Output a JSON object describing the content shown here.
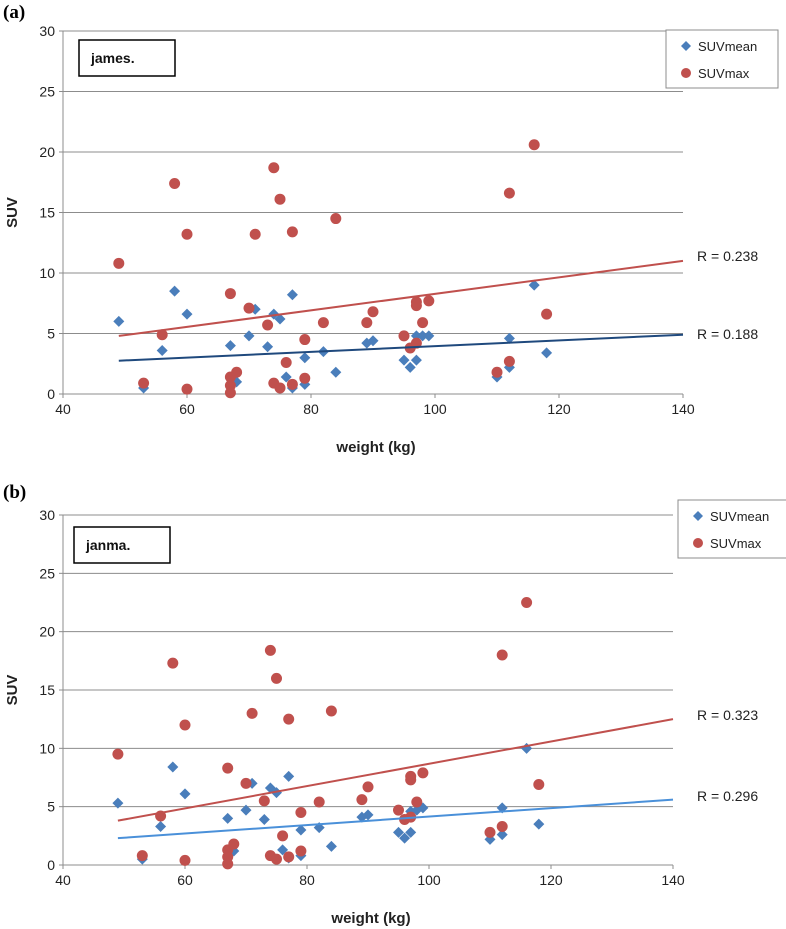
{
  "chart_data": [
    {
      "type": "scatter",
      "panel_label": "(a)",
      "tag": "james.",
      "xlabel": "weight (kg)",
      "ylabel": "SUV",
      "xlim": [
        40,
        140
      ],
      "ylim": [
        0,
        30
      ],
      "xticks": [
        40,
        60,
        80,
        100,
        120,
        140
      ],
      "yticks": [
        0,
        5,
        10,
        15,
        20,
        25,
        30
      ],
      "grid": "horizontal",
      "legend": "top-right",
      "series": [
        {
          "name": "SUVmean",
          "marker": "diamond",
          "color": "#4a7ebb",
          "points": [
            [
              49,
              6.0
            ],
            [
              53,
              0.5
            ],
            [
              56,
              3.6
            ],
            [
              58,
              8.5
            ],
            [
              60,
              6.6
            ],
            [
              67,
              4.0
            ],
            [
              67,
              1.3
            ],
            [
              68,
              1.0
            ],
            [
              70,
              4.8
            ],
            [
              71,
              7.0
            ],
            [
              73,
              3.9
            ],
            [
              74,
              6.6
            ],
            [
              75,
              6.2
            ],
            [
              76,
              1.4
            ],
            [
              77,
              8.2
            ],
            [
              77,
              0.5
            ],
            [
              79,
              3.0
            ],
            [
              79,
              0.8
            ],
            [
              82,
              3.5
            ],
            [
              84,
              1.8
            ],
            [
              89,
              4.2
            ],
            [
              90,
              4.4
            ],
            [
              95,
              2.8
            ],
            [
              96,
              2.2
            ],
            [
              97,
              2.8
            ],
            [
              97,
              4.8
            ],
            [
              98,
              4.8
            ],
            [
              99,
              4.8
            ],
            [
              110,
              1.4
            ],
            [
              112,
              2.2
            ],
            [
              112,
              4.6
            ],
            [
              116,
              9.0
            ],
            [
              118,
              3.4
            ]
          ]
        },
        {
          "name": "SUVmax",
          "marker": "circle",
          "color": "#c0504d",
          "points": [
            [
              49,
              10.8
            ],
            [
              53,
              0.9
            ],
            [
              56,
              4.9
            ],
            [
              58,
              17.4
            ],
            [
              60,
              13.2
            ],
            [
              60,
              0.4
            ],
            [
              67,
              8.3
            ],
            [
              67,
              1.4
            ],
            [
              67,
              0.7
            ],
            [
              67,
              0.1
            ],
            [
              68,
              1.8
            ],
            [
              70,
              7.1
            ],
            [
              71,
              13.2
            ],
            [
              73,
              5.7
            ],
            [
              74,
              18.7
            ],
            [
              74,
              0.9
            ],
            [
              75,
              16.1
            ],
            [
              75,
              0.5
            ],
            [
              76,
              2.6
            ],
            [
              77,
              13.4
            ],
            [
              77,
              0.8
            ],
            [
              79,
              4.5
            ],
            [
              79,
              1.3
            ],
            [
              82,
              5.9
            ],
            [
              84,
              14.5
            ],
            [
              89,
              5.9
            ],
            [
              90,
              6.8
            ],
            [
              95,
              4.8
            ],
            [
              96,
              3.8
            ],
            [
              97,
              4.2
            ],
            [
              97,
              7.3
            ],
            [
              97,
              7.6
            ],
            [
              98,
              5.9
            ],
            [
              99,
              7.7
            ],
            [
              110,
              1.8
            ],
            [
              112,
              2.7
            ],
            [
              112,
              16.6
            ],
            [
              116,
              20.6
            ],
            [
              118,
              6.6
            ]
          ]
        }
      ],
      "trendlines": [
        {
          "series": "SUVmax",
          "color": "#c0504d",
          "x": [
            49,
            140
          ],
          "y": [
            4.8,
            11.0
          ],
          "label": "R = 0.238"
        },
        {
          "series": "SUVmean",
          "color": "#1f497d",
          "x": [
            49,
            140
          ],
          "y": [
            2.75,
            4.9
          ],
          "label": "R = 0.188"
        }
      ]
    },
    {
      "type": "scatter",
      "panel_label": "(b)",
      "tag": "janma.",
      "xlabel": "weight (kg)",
      "ylabel": "SUV",
      "xlim": [
        40,
        140
      ],
      "ylim": [
        0,
        30
      ],
      "xticks": [
        40,
        60,
        80,
        100,
        120,
        140
      ],
      "yticks": [
        0,
        5,
        10,
        15,
        20,
        25,
        30
      ],
      "grid": "horizontal",
      "legend": "top-right",
      "series": [
        {
          "name": "SUVmean",
          "marker": "diamond",
          "color": "#4a7ebb",
          "points": [
            [
              49,
              5.3
            ],
            [
              53,
              0.5
            ],
            [
              56,
              3.3
            ],
            [
              58,
              8.4
            ],
            [
              60,
              6.1
            ],
            [
              67,
              4.0
            ],
            [
              67,
              1.2
            ],
            [
              68,
              1.2
            ],
            [
              70,
              4.7
            ],
            [
              71,
              7.0
            ],
            [
              73,
              3.9
            ],
            [
              74,
              6.6
            ],
            [
              75,
              6.2
            ],
            [
              76,
              1.3
            ],
            [
              77,
              7.6
            ],
            [
              77,
              0.6
            ],
            [
              79,
              3.0
            ],
            [
              79,
              0.8
            ],
            [
              82,
              3.2
            ],
            [
              84,
              1.6
            ],
            [
              89,
              4.1
            ],
            [
              90,
              4.3
            ],
            [
              95,
              2.8
            ],
            [
              96,
              2.3
            ],
            [
              97,
              2.8
            ],
            [
              97,
              4.6
            ],
            [
              98,
              4.7
            ],
            [
              99,
              4.9
            ],
            [
              110,
              2.2
            ],
            [
              112,
              2.6
            ],
            [
              112,
              4.9
            ],
            [
              116,
              10.0
            ],
            [
              118,
              3.5
            ]
          ]
        },
        {
          "name": "SUVmax",
          "marker": "circle",
          "color": "#c0504d",
          "points": [
            [
              49,
              9.5
            ],
            [
              53,
              0.8
            ],
            [
              56,
              4.2
            ],
            [
              58,
              17.3
            ],
            [
              60,
              12.0
            ],
            [
              60,
              0.4
            ],
            [
              67,
              8.3
            ],
            [
              67,
              1.3
            ],
            [
              67,
              0.7
            ],
            [
              67,
              0.1
            ],
            [
              68,
              1.8
            ],
            [
              70,
              7.0
            ],
            [
              71,
              13.0
            ],
            [
              73,
              5.5
            ],
            [
              74,
              18.4
            ],
            [
              74,
              0.8
            ],
            [
              75,
              16.0
            ],
            [
              75,
              0.5
            ],
            [
              76,
              2.5
            ],
            [
              77,
              12.5
            ],
            [
              77,
              0.7
            ],
            [
              79,
              4.5
            ],
            [
              79,
              1.2
            ],
            [
              82,
              5.4
            ],
            [
              84,
              13.2
            ],
            [
              89,
              5.6
            ],
            [
              90,
              6.7
            ],
            [
              95,
              4.7
            ],
            [
              96,
              3.9
            ],
            [
              97,
              4.1
            ],
            [
              97,
              7.3
            ],
            [
              97,
              7.6
            ],
            [
              98,
              5.4
            ],
            [
              99,
              7.9
            ],
            [
              110,
              2.8
            ],
            [
              112,
              3.3
            ],
            [
              112,
              18.0
            ],
            [
              116,
              22.5
            ],
            [
              118,
              6.9
            ]
          ]
        }
      ],
      "trendlines": [
        {
          "series": "SUVmax",
          "color": "#c0504d",
          "x": [
            49,
            140
          ],
          "y": [
            3.8,
            12.5
          ],
          "label": "R = 0.323"
        },
        {
          "series": "SUVmean",
          "color": "#4a90d9",
          "x": [
            49,
            140
          ],
          "y": [
            2.3,
            5.6
          ],
          "label": "R = 0.296"
        }
      ]
    }
  ]
}
